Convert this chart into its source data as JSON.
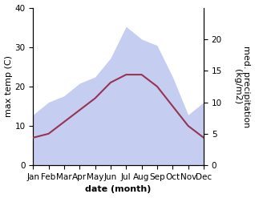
{
  "months": [
    "Jan",
    "Feb",
    "Mar",
    "Apr",
    "May",
    "Jun",
    "Jul",
    "Aug",
    "Sep",
    "Oct",
    "Nov",
    "Dec"
  ],
  "month_indices": [
    0,
    1,
    2,
    3,
    4,
    5,
    6,
    7,
    8,
    9,
    10,
    11
  ],
  "max_temp": [
    7,
    8,
    11,
    14,
    17,
    21,
    23,
    23,
    20,
    15,
    10,
    7
  ],
  "precipitation": [
    8,
    10,
    11,
    13,
    14,
    17,
    22,
    20,
    19,
    14,
    8,
    10
  ],
  "temp_color": "#993355",
  "precip_color_fill": "#c5cef0",
  "left_ylim": [
    0,
    40
  ],
  "right_ylim": [
    0,
    25
  ],
  "left_yticks": [
    0,
    10,
    20,
    30,
    40
  ],
  "right_yticks": [
    0,
    5,
    10,
    15,
    20
  ],
  "xlabel": "date (month)",
  "ylabel_left": "max temp (C)",
  "ylabel_right": "med. precipitation\n(kg/m2)",
  "axis_label_fontsize": 8,
  "tick_fontsize": 7.5,
  "bg_color": "#ffffff",
  "line_width": 1.5
}
